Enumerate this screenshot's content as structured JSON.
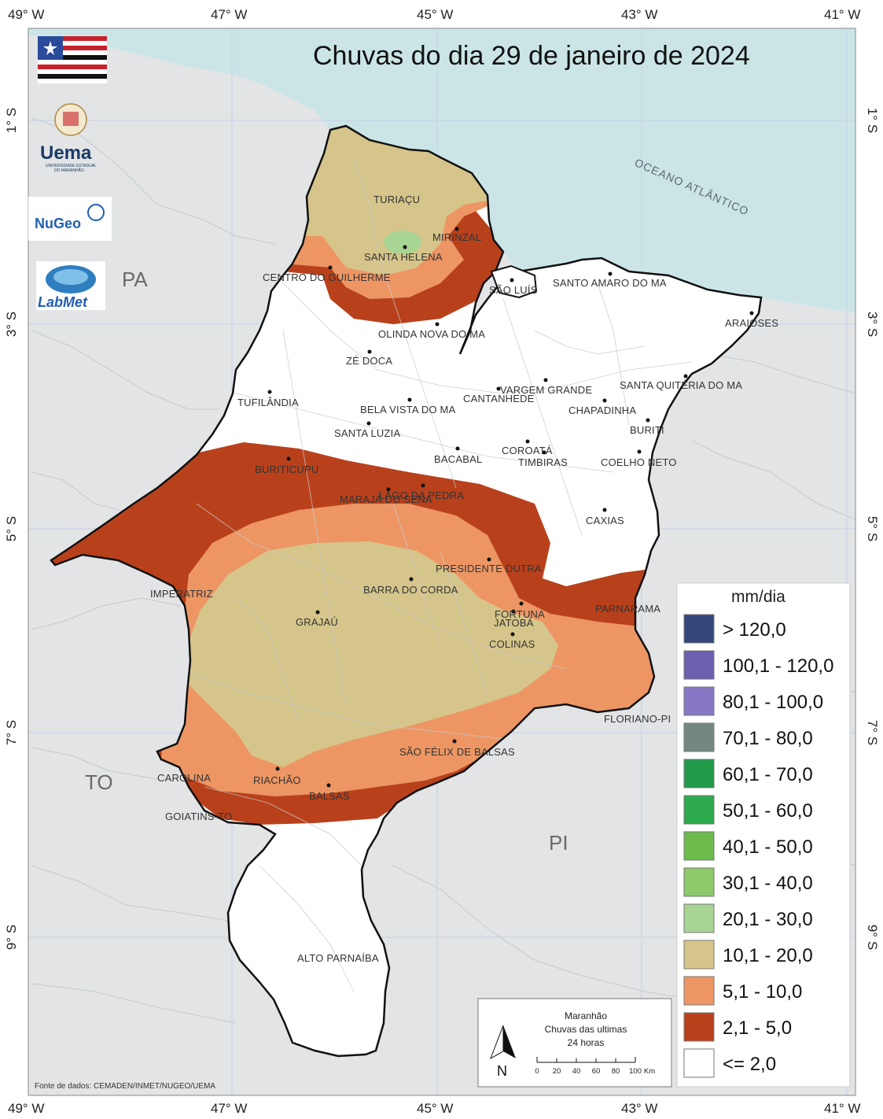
{
  "title": "Chuvas do dia 29 de janeiro de 2024",
  "data_source": "Fonte de dados: CEMADEN/INMET/NUGEO/UEMA",
  "axes": {
    "longitudes": [
      "49° W",
      "47° W",
      "45° W",
      "43° W",
      "41° W"
    ],
    "latitudes": [
      "1° S",
      "3° S",
      "5° S",
      "7° S",
      "9° S"
    ]
  },
  "state_labels": [
    "PA",
    "TO",
    "PI"
  ],
  "ocean_label": "OCEANO ATLÂNTICO",
  "cities": [
    "TURIAÇU",
    "MIRINZAL",
    "SANTA HELENA",
    "CENTRO DO GUILHERME",
    "SÃO LUÍS",
    "SANTO AMARO DO MA",
    "ARAIOSES",
    "OLINDA NOVA DO MA",
    "ZÉ DOCA",
    "TUFILÂNDIA",
    "BELA VISTA DO MA",
    "CANTANHEDE",
    "VARGEM GRANDE",
    "SANTA QUITÉRIA DO MA",
    "CHAPADINHA",
    "BURITI",
    "SANTA LUZIA",
    "BACABAL",
    "COROATÁ",
    "TIMBIRAS",
    "COELHO NETO",
    "BURITICUPU",
    "LAGO DA PEDRA",
    "MARAJÁ DO SENA",
    "CAXIAS",
    "PRESIDENTE DUTRA",
    "IMPERATRIZ",
    "BARRA DO CORDA",
    "GRAJAÚ",
    "FORTUNA",
    "JATOBÁ",
    "PARNARAMA",
    "COLINAS",
    "FLORIANO-PI",
    "SÃO FÉLIX DE BALSAS",
    "CAROLINA",
    "RIACHÃO",
    "BALSAS",
    "GOIATINS-TO",
    "ALTO PARNAÍBA"
  ],
  "legend": {
    "title": "mm/dia",
    "items": [
      {
        "label": "> 120,0",
        "color": "#34457a"
      },
      {
        "label": "100,1 - 120,0",
        "color": "#6b5fb0"
      },
      {
        "label": "80,1 - 100,0",
        "color": "#8877c4"
      },
      {
        "label": "70,1 - 80,0",
        "color": "#74887f"
      },
      {
        "label": "60,1 - 70,0",
        "color": "#229a4a"
      },
      {
        "label": "50,1 - 60,0",
        "color": "#2eaa4e"
      },
      {
        "label": "40,1 - 50,0",
        "color": "#6cbb4c"
      },
      {
        "label": "30,1 - 40,0",
        "color": "#8ec96a"
      },
      {
        "label": "20,1 - 30,0",
        "color": "#a8d494"
      },
      {
        "label": "10,1 - 20,0",
        "color": "#d6c58a"
      },
      {
        "label": "5,1 - 10,0",
        "color": "#ed9664"
      },
      {
        "label": "2,1 - 5,0",
        "color": "#b8411c"
      },
      {
        "label": "<= 2,0",
        "color": "#ffffff"
      }
    ]
  },
  "info_box": {
    "line1": "Maranhão",
    "line2": "Chuvas das ultimas",
    "line3": "24 horas",
    "north": "N",
    "scale_ticks": [
      "0",
      "20",
      "40",
      "60",
      "80",
      "100"
    ],
    "scale_unit": "Km"
  },
  "logos": {
    "uema": "Uema",
    "uema_sub1": "UNIVERSIDADE ESTADUAL",
    "uema_sub2": "DO MARANHÃO",
    "nuge": "NuGeo",
    "labmet": "LabMet"
  }
}
